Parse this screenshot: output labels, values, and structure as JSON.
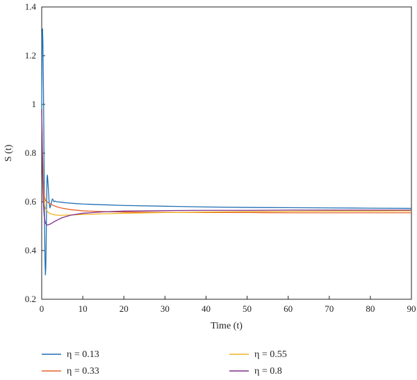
{
  "chart_data": {
    "type": "line",
    "title": "",
    "xlabel": "Time (t)",
    "ylabel": "S (t)",
    "xlim": [
      0,
      90
    ],
    "ylim": [
      0.2,
      1.4
    ],
    "xticks": [
      0,
      10,
      20,
      30,
      40,
      50,
      60,
      70,
      80,
      90
    ],
    "yticks": [
      0.2,
      0.4,
      0.6,
      0.8,
      1.0,
      1.2,
      1.4
    ],
    "xtick_labels": [
      "0",
      "10",
      "20",
      "30",
      "40",
      "50",
      "60",
      "70",
      "80",
      "90"
    ],
    "ytick_labels": [
      "0.2",
      "0.4",
      "0.6",
      "0.8",
      "1",
      "1.2",
      "1.4"
    ],
    "grid": false,
    "legend_position": "bottom",
    "series": [
      {
        "name": "η = 0.13",
        "color": "#1f6fb4",
        "x": [
          0,
          0.1,
          0.2,
          0.3,
          0.4,
          0.5,
          0.6,
          0.7,
          0.8,
          0.9,
          1.0,
          1.1,
          1.2,
          1.3,
          1.4,
          1.6,
          1.8,
          2.0,
          2.2,
          2.4,
          2.6,
          2.8,
          3.0,
          3.3,
          3.6,
          4,
          5,
          6,
          8,
          10,
          15,
          20,
          30,
          40,
          50,
          60,
          70,
          80,
          90
        ],
        "y": [
          0.98,
          1.28,
          1.31,
          1.25,
          1.1,
          0.92,
          0.7,
          0.5,
          0.36,
          0.3,
          0.33,
          0.45,
          0.6,
          0.7,
          0.71,
          0.66,
          0.6,
          0.575,
          0.585,
          0.6,
          0.612,
          0.607,
          0.6,
          0.603,
          0.6,
          0.6,
          0.598,
          0.596,
          0.593,
          0.591,
          0.588,
          0.585,
          0.582,
          0.579,
          0.577,
          0.576,
          0.575,
          0.574,
          0.573
        ]
      },
      {
        "name": "η = 0.33",
        "color": "#e6622a",
        "x": [
          0,
          0.2,
          0.4,
          0.6,
          0.8,
          1.0,
          1.5,
          2,
          3,
          4,
          5,
          7,
          10,
          15,
          20,
          30,
          40,
          50,
          60,
          70,
          80,
          90
        ],
        "y": [
          0.98,
          0.8,
          0.68,
          0.63,
          0.61,
          0.605,
          0.598,
          0.592,
          0.584,
          0.578,
          0.574,
          0.568,
          0.563,
          0.56,
          0.558,
          0.557,
          0.556,
          0.556,
          0.555,
          0.555,
          0.555,
          0.555
        ]
      },
      {
        "name": "η = 0.55",
        "color": "#f0b323",
        "x": [
          0,
          0.2,
          0.4,
          0.6,
          0.8,
          1.0,
          1.5,
          2,
          3,
          4,
          5,
          7,
          10,
          15,
          20,
          30,
          40,
          50,
          60,
          70,
          80,
          90
        ],
        "y": [
          0.98,
          0.75,
          0.64,
          0.6,
          0.58,
          0.57,
          0.558,
          0.552,
          0.547,
          0.545,
          0.545,
          0.546,
          0.548,
          0.551,
          0.553,
          0.556,
          0.558,
          0.56,
          0.561,
          0.562,
          0.562,
          0.563
        ]
      },
      {
        "name": "η = 0.8",
        "color": "#7f2d8c",
        "x": [
          0,
          0.2,
          0.4,
          0.6,
          0.8,
          1.0,
          1.2,
          1.5,
          2,
          2.5,
          3,
          4,
          5,
          7,
          10,
          15,
          20,
          30,
          40,
          50,
          60,
          70,
          80,
          90
        ],
        "y": [
          0.98,
          0.72,
          0.6,
          0.545,
          0.52,
          0.51,
          0.506,
          0.505,
          0.508,
          0.513,
          0.518,
          0.527,
          0.535,
          0.545,
          0.553,
          0.559,
          0.562,
          0.564,
          0.565,
          0.565,
          0.566,
          0.566,
          0.566,
          0.566
        ]
      }
    ]
  }
}
